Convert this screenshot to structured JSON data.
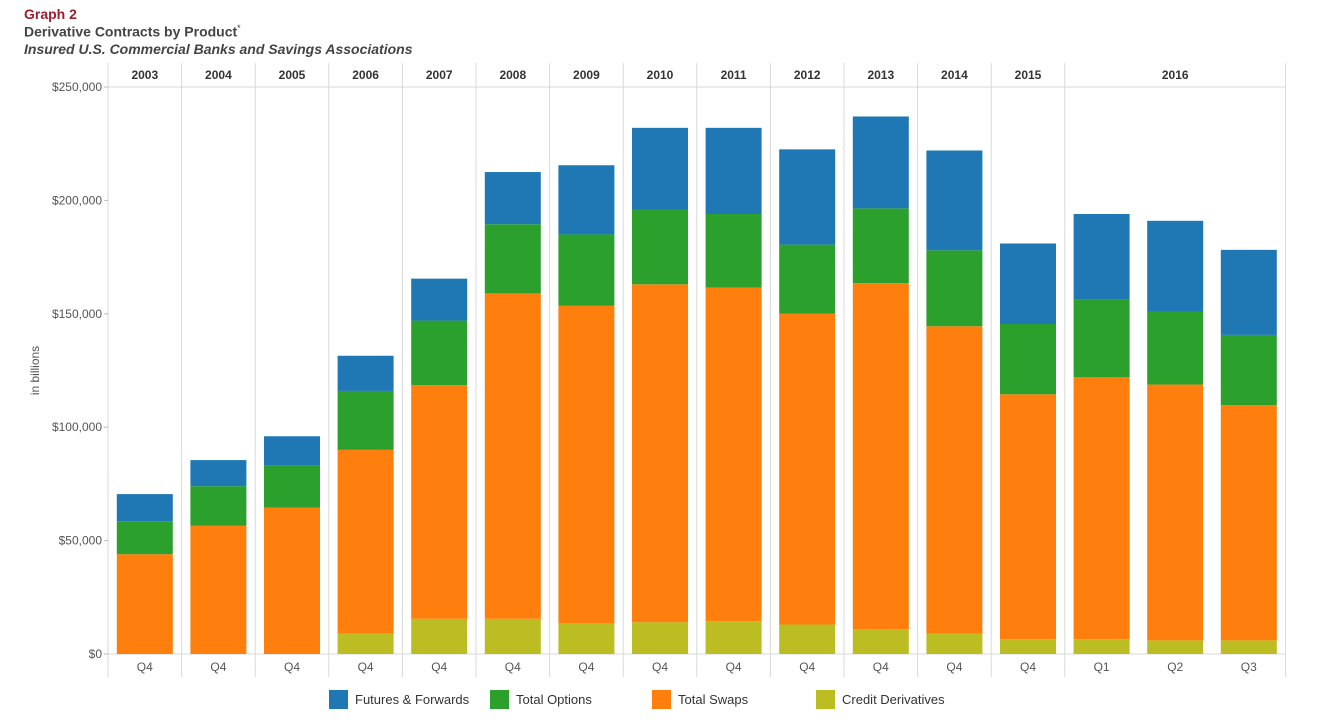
{
  "header": {
    "graph_label": "Graph 2",
    "title": "Derivative Contracts by Product",
    "title_mark": "*",
    "subtitle": "Insured U.S. Commercial Banks and Savings Associations"
  },
  "chart_data": {
    "type": "bar",
    "stacked": true,
    "ylabel": "in billions",
    "ylim": [
      0,
      250000
    ],
    "yticks": [
      "$0",
      "$50,000",
      "$100,000",
      "$150,000",
      "$200,000",
      "$250,000"
    ],
    "ytick_values": [
      0,
      50000,
      100000,
      150000,
      200000,
      250000
    ],
    "year_groups": [
      {
        "year": "2003",
        "quarters": [
          "Q4"
        ]
      },
      {
        "year": "2004",
        "quarters": [
          "Q4"
        ]
      },
      {
        "year": "2005",
        "quarters": [
          "Q4"
        ]
      },
      {
        "year": "2006",
        "quarters": [
          "Q4"
        ]
      },
      {
        "year": "2007",
        "quarters": [
          "Q4"
        ]
      },
      {
        "year": "2008",
        "quarters": [
          "Q4"
        ]
      },
      {
        "year": "2009",
        "quarters": [
          "Q4"
        ]
      },
      {
        "year": "2010",
        "quarters": [
          "Q4"
        ]
      },
      {
        "year": "2011",
        "quarters": [
          "Q4"
        ]
      },
      {
        "year": "2012",
        "quarters": [
          "Q4"
        ]
      },
      {
        "year": "2013",
        "quarters": [
          "Q4"
        ]
      },
      {
        "year": "2014",
        "quarters": [
          "Q4"
        ]
      },
      {
        "year": "2015",
        "quarters": [
          "Q4"
        ]
      },
      {
        "year": "2016",
        "quarters": [
          "Q1",
          "Q2",
          "Q3"
        ]
      }
    ],
    "series": [
      {
        "name": "Credit Derivatives",
        "color": "#bcbd22",
        "values": [
          0,
          0,
          0,
          9000,
          15500,
          15500,
          13500,
          14000,
          14500,
          13000,
          11000,
          9000,
          6500,
          6500,
          6000,
          6000
        ]
      },
      {
        "name": "Total Swaps",
        "color": "#ff7f0e",
        "values": [
          44000,
          56500,
          64500,
          81000,
          103000,
          143500,
          140000,
          149000,
          147000,
          137000,
          152500,
          135500,
          108000,
          115500,
          112800,
          103700
        ]
      },
      {
        "name": "Total Options",
        "color": "#2ca02c",
        "values": [
          14500,
          17500,
          18500,
          26000,
          28500,
          30500,
          31500,
          33000,
          32500,
          30500,
          33000,
          33500,
          31000,
          34500,
          32200,
          31000
        ]
      },
      {
        "name": "Futures & Forwards",
        "color": "#1f77b4",
        "values": [
          12000,
          11500,
          13000,
          15500,
          18500,
          23000,
          30500,
          36000,
          38000,
          42000,
          40500,
          44000,
          35500,
          37500,
          40000,
          37500
        ]
      }
    ],
    "legend_order": [
      "Futures & Forwards",
      "Total Options",
      "Total Swaps",
      "Credit Derivatives"
    ],
    "legend_placement": "bottom",
    "grid": "vertical separators between years"
  }
}
